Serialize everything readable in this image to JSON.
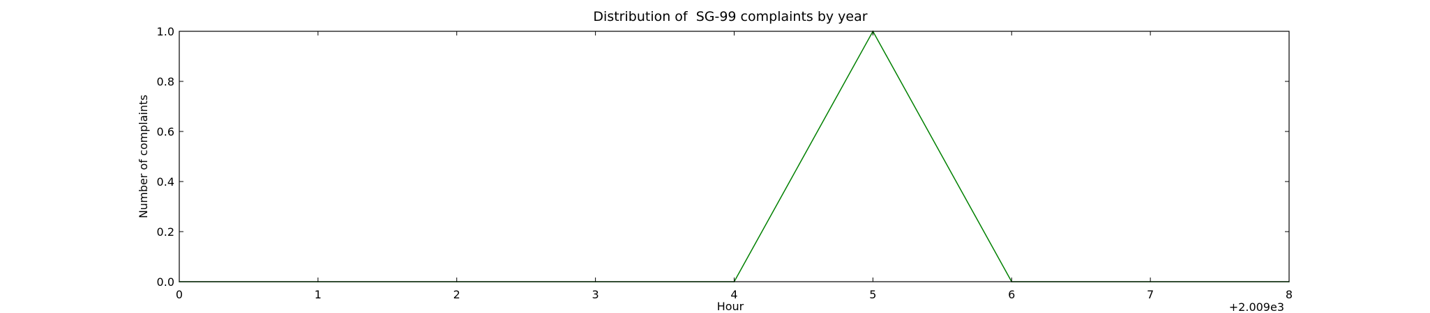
{
  "chart_data": {
    "type": "line",
    "title": "Distribution of  SG-99 complaints by year",
    "xlabel": "Hour",
    "ylabel": "Number of complaints",
    "x_offset_label": "+2.009e3",
    "x": [
      0,
      1,
      2,
      3,
      4,
      5,
      6,
      7,
      8
    ],
    "series": [
      {
        "values": [
          0,
          0,
          0,
          0,
          0,
          1,
          0,
          0,
          0
        ],
        "color": "#008000"
      }
    ],
    "xlim": [
      0,
      8
    ],
    "ylim": [
      0,
      1
    ],
    "x_ticks": [
      "0",
      "1",
      "2",
      "3",
      "4",
      "5",
      "6",
      "7",
      "8"
    ],
    "y_ticks": [
      "0.0",
      "0.2",
      "0.4",
      "0.6",
      "0.8",
      "1.0"
    ],
    "grid": false
  }
}
